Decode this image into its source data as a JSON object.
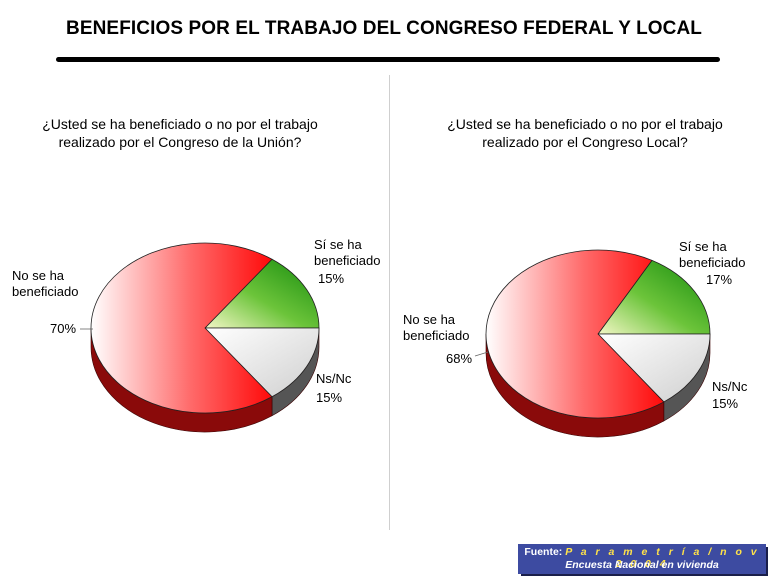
{
  "page": {
    "title": "BENEFICIOS POR EL TRABAJO DEL CONGRESO FEDERAL Y LOCAL"
  },
  "footer": {
    "prefix": "Fuente:",
    "source": "P a r a m e t r í a  /  n o v  2 0 0 4",
    "note": "Encuesta Nacional en vivienda"
  },
  "chart_data": [
    {
      "type": "pie",
      "title": "¿Usted se ha beneficiado o no por el trabajo\nrealizado por el Congreso de la Unión?",
      "slices": [
        {
          "label": "Sí se ha beneficiado",
          "label_lines": [
            "Sí se ha",
            "beneficiado"
          ],
          "value": 15,
          "value_label": "15%",
          "color": "#2e9b14"
        },
        {
          "label": "Ns/Nc",
          "label_lines": [
            "Ns/Nc"
          ],
          "value": 15,
          "value_label": "15%",
          "color": "#e6e6e6"
        },
        {
          "label": "No se ha beneficiado",
          "label_lines": [
            "No se ha",
            "beneficiado"
          ],
          "value": 70,
          "value_label": "70%",
          "color": "#ff1f1f"
        }
      ]
    },
    {
      "type": "pie",
      "title": "¿Usted se ha beneficiado o no por el trabajo\nrealizado por el Congreso Local?",
      "slices": [
        {
          "label": "Sí se ha beneficiado",
          "label_lines": [
            "Sí se ha",
            "beneficiado"
          ],
          "value": 17,
          "value_label": "17%",
          "color": "#2e9b14"
        },
        {
          "label": "Ns/Nc",
          "label_lines": [
            "Ns/Nc"
          ],
          "value": 15,
          "value_label": "15%",
          "color": "#e6e6e6"
        },
        {
          "label": "No se ha beneficiado",
          "label_lines": [
            "No se ha",
            "beneficiado"
          ],
          "value": 68,
          "value_label": "68%",
          "color": "#ff1f1f"
        }
      ]
    }
  ]
}
